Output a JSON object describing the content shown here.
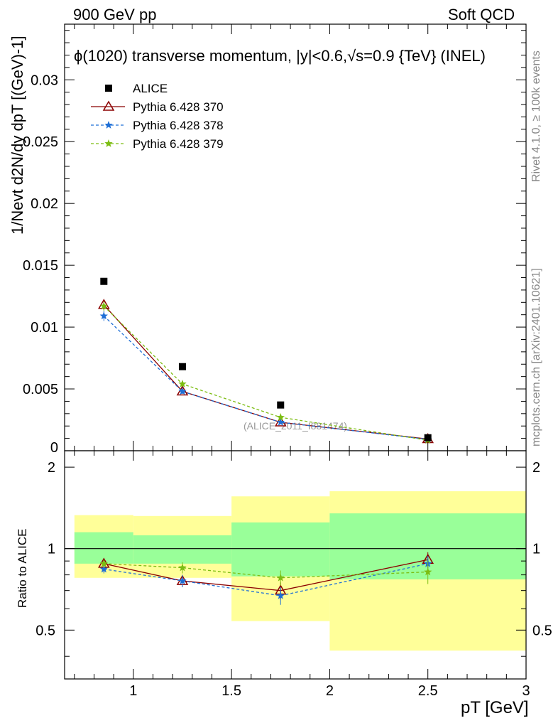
{
  "header": {
    "left": "900 GeV pp",
    "right": "Soft QCD"
  },
  "side_labels": {
    "rivet": "Rivet 4.1.0, ≥ 100k events",
    "mcplots": "mcplots.cern.ch [arXiv:2401.10621]"
  },
  "chart_data": {
    "type": "scatter",
    "title": "ϕ(1020) transverse momentum, |y|<0.6,√s=0.9 {TeV} (INEL)",
    "analysis_tag": "(ALICE_2011_I881474)",
    "xlabel": "p_T [GeV]",
    "xlabel_text": "pT [GeV]",
    "ylabel": "1/N_evt d²N/dy dp_T [(GeV)^-1]",
    "ylabel_text": "1/Nevt d2N/dy dpT [(GeV)-1]",
    "ratio_ylabel": "Ratio to ALICE",
    "xlim": [
      0.65,
      3.0
    ],
    "ylim": [
      0,
      0.0345
    ],
    "ratio_ylim": [
      0.33,
      2.3
    ],
    "x_ticks": [
      "1",
      "1.5",
      "2",
      "2.5",
      "3"
    ],
    "y_ticks": [
      "0",
      "0.005",
      "0.01",
      "0.015",
      "0.02",
      "0.025",
      "0.03"
    ],
    "ratio_ticks": [
      "0.5",
      "1",
      "2"
    ],
    "bins": [
      [
        0.7,
        1.0
      ],
      [
        1.0,
        1.5
      ],
      [
        1.5,
        2.0
      ],
      [
        2.0,
        3.0
      ]
    ],
    "x": [
      0.85,
      1.25,
      1.75,
      2.5
    ],
    "data": {
      "name": "ALICE",
      "values": [
        0.0137,
        0.0068,
        0.0037,
        0.00105
      ],
      "band_stat": [
        [
          0.88,
          1.15
        ],
        [
          0.88,
          1.12
        ],
        [
          0.79,
          1.25
        ],
        [
          0.77,
          1.35
        ]
      ],
      "band_total": [
        [
          0.78,
          1.33
        ],
        [
          0.78,
          1.32
        ],
        [
          0.54,
          1.56
        ],
        [
          0.42,
          1.63
        ]
      ]
    },
    "series": [
      {
        "name": "Pythia 6.428 370",
        "color": "#8b0000",
        "marker": "triangle",
        "dash": "",
        "values": [
          0.0118,
          0.0048,
          0.0023,
          0.00095
        ],
        "errors": [
          0.0004,
          0.0002,
          0.00015,
          0.0001
        ],
        "ratio": [
          0.88,
          0.76,
          0.7,
          0.91
        ],
        "ratio_err": [
          0.03,
          0.04,
          0.05,
          0.06
        ]
      },
      {
        "name": "Pythia 6.428 378",
        "color": "#1e6fd6",
        "marker": "star",
        "dash": "4,3",
        "values": [
          0.0109,
          0.0048,
          0.0023,
          0.00092
        ],
        "errors": [
          0.0004,
          0.0002,
          0.00015,
          0.0001
        ],
        "ratio": [
          0.84,
          0.76,
          0.67,
          0.88
        ],
        "ratio_err": [
          0.03,
          0.04,
          0.05,
          0.06
        ]
      },
      {
        "name": "Pythia 6.428 379",
        "color": "#7cbd12",
        "marker": "star",
        "dash": "4,3",
        "values": [
          0.0117,
          0.0054,
          0.0027,
          0.00085
        ],
        "errors": [
          0.0004,
          0.0002,
          0.00015,
          0.0001
        ],
        "ratio": [
          0.88,
          0.85,
          0.78,
          0.82
        ],
        "ratio_err": [
          0.03,
          0.04,
          0.05,
          0.08
        ]
      }
    ],
    "legend_position": "top-left",
    "colors": {
      "stat_band": "#99ff99",
      "total_band": "#ffff99",
      "data_marker": "#000000"
    }
  }
}
